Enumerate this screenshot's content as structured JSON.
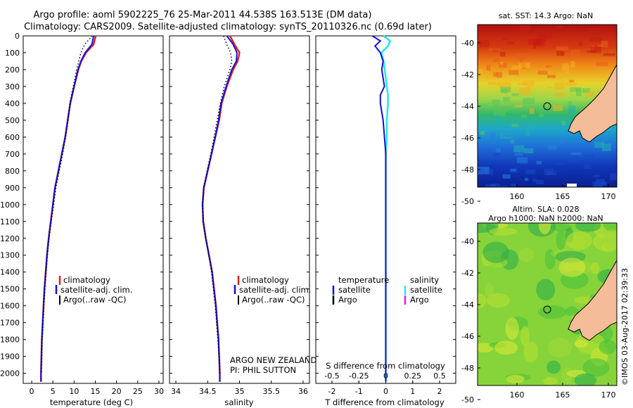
{
  "header": {
    "line1": "Argo profile: aoml 5902225_76 25-Mar-2011 44.538S 163.513E (DM data)",
    "line2": "Climatology: CARS2009. Satellite-adjusted climatology: synTS_20110326.nc (0.69d later)"
  },
  "depth_ticks": [
    "0",
    "100",
    "200",
    "300",
    "400",
    "500",
    "600",
    "700",
    "800",
    "900",
    "1000",
    "1100",
    "1200",
    "1300",
    "1400",
    "1500",
    "1600",
    "1700",
    "1800",
    "1900",
    "2000"
  ],
  "colors": {
    "climatology": "#e02020",
    "satellite": "#1010d8",
    "argo": "#000000",
    "sal_satellite": "#20e8f0",
    "sal_argo": "#e020e0",
    "land": "#f4bc98",
    "coast": "#000000"
  },
  "panels": {
    "temp": {
      "xlabel": "temperature (deg C)",
      "ticks": [
        "0",
        "5",
        "10",
        "15",
        "20",
        "25",
        "30"
      ],
      "legend": [
        "climatology",
        "satellite-adj. clim.",
        "Argo(..raw -QC)"
      ]
    },
    "sal": {
      "xlabel": "salinity",
      "ticks": [
        "34",
        "34.5",
        "35",
        "35.5",
        "36"
      ],
      "legend": [
        "climatology",
        "satellite-adj. clim.",
        "Argo(..raw -QC)"
      ],
      "note1": "ARGO NEW ZEALAND",
      "note2": "PI: PHIL SUTTON"
    },
    "diff": {
      "xlabel": "T difference from climatology",
      "ticks": [
        "-2",
        "-1",
        "0",
        "1",
        "2"
      ],
      "s_label": "S difference from climatology",
      "s_ticks": [
        "-0.5",
        "-0.25",
        "0",
        "0.25",
        "0.5"
      ],
      "legend_head_t": "temperature",
      "legend_head_s": "salinity",
      "legend_t": [
        "satellite",
        "Argo"
      ],
      "legend_s": [
        "satellite",
        "Argo"
      ]
    }
  },
  "maps": {
    "sst": {
      "title": "sat. SST: 14.3 Argo: NaN",
      "lat_ticks": [
        "-40",
        "-42",
        "-44",
        "-46",
        "-48",
        "-50"
      ],
      "lon_ticks": [
        "160",
        "165",
        "170"
      ]
    },
    "sla": {
      "title1": "Altim. SLA: 0.028",
      "title2": "Argo h1000: NaN h2000: NaN",
      "lat_ticks": [
        "-40",
        "-42",
        "-44",
        "-46",
        "-48",
        "-50"
      ],
      "lon_ticks": [
        "160",
        "165",
        "170"
      ]
    }
  },
  "credit": "©IMOS 03-Aug-2017 02:39:33",
  "chart_data": [
    {
      "type": "line",
      "title": "",
      "xlabel": "temperature (deg C)",
      "ylabel": "",
      "xlim": [
        -2,
        31
      ],
      "ylim": [
        2060,
        0
      ],
      "y_reversed": true,
      "series": [
        {
          "name": "climatology",
          "y": [
            0,
            50,
            100,
            150,
            200,
            300,
            400,
            500,
            600,
            700,
            800,
            900,
            1000,
            1100,
            1200,
            1300,
            1400,
            1500,
            1600,
            1700,
            1800,
            1900,
            2000,
            2050
          ],
          "values": [
            15.1,
            14.6,
            12.8,
            11.7,
            11.0,
            10.0,
            9.1,
            8.5,
            7.9,
            7.1,
            6.3,
            5.5,
            5.0,
            4.5,
            4.0,
            3.6,
            3.3,
            3.0,
            2.8,
            2.6,
            2.4,
            2.3,
            2.2,
            2.2
          ]
        },
        {
          "name": "satellite-adj. clim.",
          "y": [
            0,
            50,
            100,
            150,
            200,
            300,
            400,
            500,
            600,
            700,
            800,
            900,
            1000,
            1100,
            1200,
            1300,
            1400,
            1500,
            1600,
            1700,
            1800,
            1900,
            2000,
            2050
          ],
          "values": [
            14.6,
            14.2,
            12.6,
            11.6,
            10.9,
            10.0,
            9.1,
            8.5,
            7.9,
            7.1,
            6.3,
            5.5,
            5.0,
            4.5,
            4.0,
            3.6,
            3.3,
            3.0,
            2.8,
            2.6,
            2.4,
            2.3,
            2.2,
            2.2
          ]
        },
        {
          "name": "Argo(..raw -QC)",
          "y": [
            0,
            50,
            100,
            150,
            200,
            300,
            400,
            500,
            600,
            700,
            800,
            900,
            1000,
            1100,
            1200,
            1300,
            1400,
            1500,
            1600,
            1700,
            1800,
            1900,
            2000
          ],
          "values": [
            14.3,
            12.5,
            11.6,
            11.1,
            10.6,
            9.8,
            9.0,
            8.6,
            8.0,
            7.3,
            6.5,
            5.7,
            5.2,
            4.6,
            4.1,
            3.7,
            3.4,
            3.1,
            2.9,
            2.7,
            2.5,
            2.4,
            2.3
          ]
        }
      ]
    },
    {
      "type": "line",
      "title": "",
      "xlabel": "salinity",
      "ylabel": "",
      "xlim": [
        33.9,
        36.1
      ],
      "ylim": [
        2060,
        0
      ],
      "y_reversed": true,
      "series": [
        {
          "name": "climatology",
          "y": [
            0,
            50,
            100,
            150,
            200,
            300,
            400,
            500,
            600,
            700,
            800,
            900,
            1000,
            1100,
            1200,
            1300,
            1400,
            1500,
            1600,
            1700,
            1800,
            1900,
            2000,
            2050
          ],
          "values": [
            34.85,
            34.92,
            35.0,
            34.97,
            34.9,
            34.8,
            34.72,
            34.68,
            34.62,
            34.56,
            34.5,
            34.44,
            34.42,
            34.43,
            34.47,
            34.52,
            34.57,
            34.6,
            34.63,
            34.65,
            34.67,
            34.68,
            34.69,
            34.69
          ]
        },
        {
          "name": "satellite-adj. clim.",
          "y": [
            0,
            50,
            100,
            150,
            200,
            300,
            400,
            500,
            600,
            700,
            800,
            900,
            1000,
            1100,
            1200,
            1300,
            1400,
            1500,
            1600,
            1700,
            1800,
            1900,
            2000,
            2050
          ],
          "values": [
            34.8,
            34.9,
            34.96,
            34.95,
            34.88,
            34.79,
            34.71,
            34.67,
            34.62,
            34.56,
            34.5,
            34.44,
            34.42,
            34.43,
            34.47,
            34.52,
            34.57,
            34.6,
            34.63,
            34.65,
            34.67,
            34.68,
            34.69,
            34.69
          ]
        },
        {
          "name": "Argo(..raw -QC)",
          "y": [
            0,
            50,
            100,
            150,
            200,
            300,
            400,
            500,
            600,
            700,
            800,
            900,
            1000,
            1100,
            1200,
            1300,
            1400,
            1500,
            1600,
            1700,
            1800,
            1900,
            2000
          ],
          "values": [
            34.75,
            34.8,
            34.86,
            34.88,
            34.85,
            34.76,
            34.7,
            34.65,
            34.6,
            34.55,
            34.49,
            34.44,
            34.42,
            34.43,
            34.47,
            34.52,
            34.56,
            34.59,
            34.62,
            34.64,
            34.66,
            34.68,
            34.69
          ]
        }
      ]
    },
    {
      "type": "line",
      "title": "",
      "xlabel": "T difference from climatology",
      "ylabel": "",
      "xlim": [
        -2.6,
        2.6
      ],
      "ylim": [
        2060,
        0
      ],
      "y_reversed": true,
      "series": [
        {
          "name": "satellite",
          "y": [
            0,
            30,
            60,
            100,
            150,
            200,
            250,
            300,
            350,
            400,
            500,
            600,
            700,
            800,
            900,
            1000,
            1200,
            1400,
            1600,
            1800,
            2000,
            2050
          ],
          "values": [
            -0.5,
            -0.2,
            -0.4,
            -0.2,
            -0.1,
            -0.15,
            -0.1,
            -0.05,
            -0.2,
            -0.2,
            -0.1,
            -0.05,
            0,
            0,
            0,
            0,
            0,
            0,
            0,
            0,
            0,
            0
          ]
        },
        {
          "name": "Argo",
          "y": [],
          "values": []
        }
      ]
    },
    {
      "type": "line",
      "title": "",
      "xlabel": "S difference from climatology",
      "ylabel": "",
      "xlim": [
        -0.65,
        0.65
      ],
      "ylim": [
        2060,
        0
      ],
      "y_reversed": true,
      "series": [
        {
          "name": "satellite",
          "y": [
            0,
            30,
            60,
            100,
            150,
            200,
            250,
            300,
            350,
            400,
            500,
            600,
            700,
            800,
            900,
            1000,
            1200,
            1400,
            1600,
            1800,
            2000,
            2050
          ],
          "values": [
            -0.02,
            0.04,
            0.02,
            -0.04,
            -0.02,
            -0.01,
            0.0,
            0.01,
            0.02,
            0.02,
            0.01,
            0.01,
            0,
            0,
            0,
            0,
            0,
            0,
            0,
            0,
            0,
            0
          ]
        },
        {
          "name": "Argo",
          "y": [],
          "values": []
        }
      ]
    }
  ]
}
